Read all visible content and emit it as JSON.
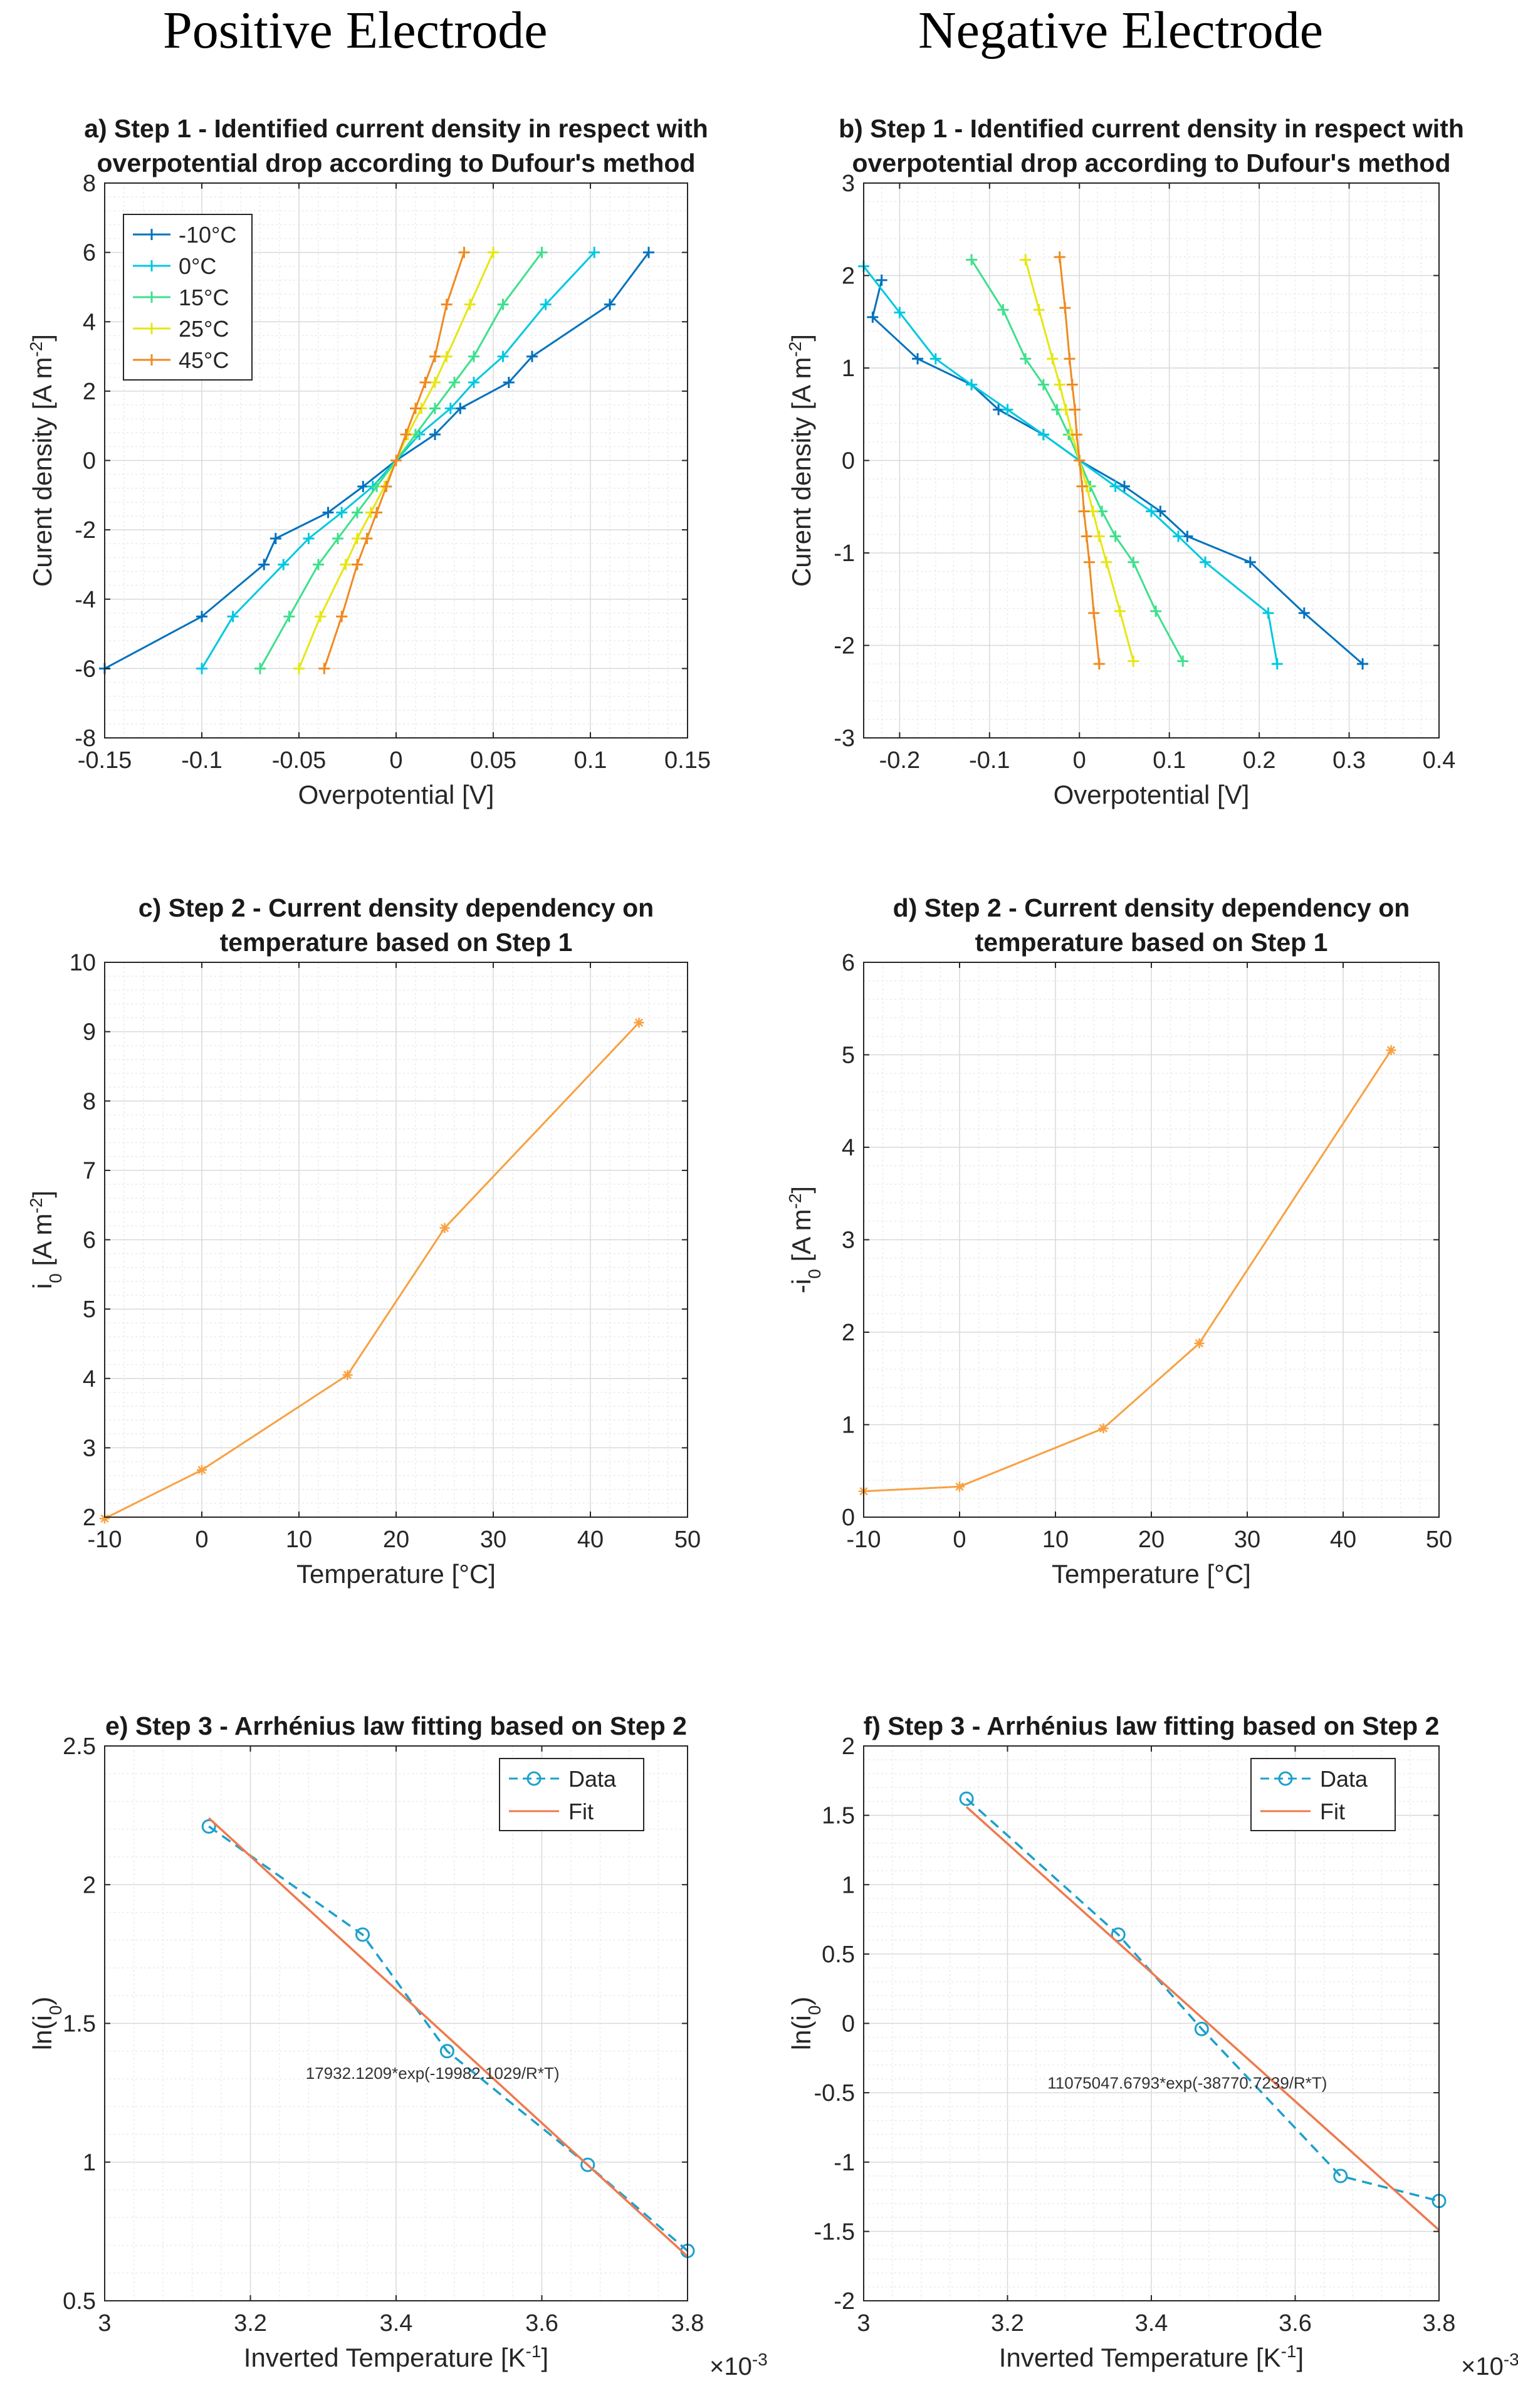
{
  "column_headings": {
    "left": "Positive Electrode",
    "right": "Negative Electrode"
  },
  "colors": {
    "m10": "#0072BD",
    "c0": "#00C8E0",
    "c15": "#3EE08C",
    "c25": "#E6E615",
    "c45": "#F08A20",
    "orange_line": "#F7A142",
    "data_line": "#1CA0CC",
    "fit_line": "#EE7A4E",
    "grid": "#d9d9d9",
    "axis": "#262626"
  },
  "chart_data": [
    {
      "id": "a",
      "type": "line",
      "title": [
        "a) Step 1 - Identified current density in respect with",
        "overpotential drop according to Dufour's method"
      ],
      "xlabel": "Overpotential [V]",
      "ylabel": "Curent density [A m^-2]",
      "xlim": [
        -0.15,
        0.15
      ],
      "ylim": [
        -8,
        8
      ],
      "xticks": [
        -0.15,
        -0.1,
        -0.05,
        0,
        0.05,
        0.1,
        0.15
      ],
      "xticklabels": [
        "-0.15",
        "-0.1",
        "-0.05",
        "0",
        "0.05",
        "0.1",
        "0.15"
      ],
      "yticks": [
        -8,
        -6,
        -4,
        -2,
        0,
        2,
        4,
        6,
        8
      ],
      "yticklabels": [
        "-8",
        "-6",
        "-4",
        "-2",
        "0",
        "2",
        "4",
        "6",
        "8"
      ],
      "marker": "plus",
      "legend_position": "top-left",
      "series": [
        {
          "name": "-10°C",
          "color": "m10",
          "x": [
            -0.15,
            -0.1,
            -0.068,
            -0.062,
            -0.035,
            -0.017,
            0,
            0.02,
            0.033,
            0.058,
            0.07,
            0.11,
            0.13
          ],
          "y": [
            -6,
            -4.5,
            -3,
            -2.25,
            -1.5,
            -0.75,
            0,
            0.75,
            1.5,
            2.25,
            3,
            4.5,
            6
          ]
        },
        {
          "name": "0°C",
          "color": "c0",
          "x": [
            -0.1,
            -0.084,
            -0.058,
            -0.045,
            -0.028,
            -0.012,
            0,
            0.012,
            0.028,
            0.04,
            0.055,
            0.077,
            0.102
          ],
          "y": [
            -6,
            -4.5,
            -3,
            -2.25,
            -1.5,
            -0.75,
            0,
            0.75,
            1.5,
            2.25,
            3,
            4.5,
            6
          ]
        },
        {
          "name": "15°C",
          "color": "c15",
          "x": [
            -0.07,
            -0.055,
            -0.04,
            -0.03,
            -0.02,
            -0.01,
            0,
            0.01,
            0.02,
            0.03,
            0.04,
            0.055,
            0.075
          ],
          "y": [
            -6,
            -4.5,
            -3,
            -2.25,
            -1.5,
            -0.75,
            0,
            0.75,
            1.5,
            2.25,
            3,
            4.5,
            6
          ]
        },
        {
          "name": "25°C",
          "color": "c25",
          "x": [
            -0.05,
            -0.039,
            -0.026,
            -0.02,
            -0.013,
            -0.006,
            0,
            0.006,
            0.013,
            0.02,
            0.026,
            0.038,
            0.05
          ],
          "y": [
            -6,
            -4.5,
            -3,
            -2.25,
            -1.5,
            -0.75,
            0,
            0.75,
            1.5,
            2.25,
            3,
            4.5,
            6
          ]
        },
        {
          "name": "45°C",
          "color": "c45",
          "x": [
            -0.037,
            -0.028,
            -0.02,
            -0.015,
            -0.01,
            -0.005,
            0,
            0.005,
            0.01,
            0.015,
            0.02,
            0.026,
            0.035
          ],
          "y": [
            -6,
            -4.5,
            -3,
            -2.25,
            -1.5,
            -0.75,
            0,
            0.75,
            1.5,
            2.25,
            3,
            4.5,
            6
          ]
        }
      ]
    },
    {
      "id": "b",
      "type": "line",
      "title": [
        "b) Step 1 - Identified current density in respect with",
        "overpotential drop according to Dufour's method"
      ],
      "xlabel": "Overpotential [V]",
      "ylabel": "Curent density [A m^-2]",
      "xlim": [
        -0.24,
        0.4
      ],
      "ylim": [
        -3,
        3
      ],
      "xticks": [
        -0.2,
        -0.1,
        0,
        0.1,
        0.2,
        0.3,
        0.4
      ],
      "xticklabels": [
        "-0.2",
        "-0.1",
        "0",
        "0.1",
        "0.2",
        "0.3",
        "0.4"
      ],
      "yticks": [
        -3,
        -2,
        -1,
        0,
        1,
        2,
        3
      ],
      "yticklabels": [
        "-3",
        "-2",
        "-1",
        "0",
        "1",
        "2",
        "3"
      ],
      "marker": "plus",
      "legend_position": "none",
      "series": [
        {
          "name": "-10°C",
          "color": "m10",
          "x": [
            -0.22,
            -0.23,
            -0.18,
            -0.12,
            -0.09,
            -0.04,
            0,
            0.05,
            0.09,
            0.12,
            0.19,
            0.25,
            0.315
          ],
          "y": [
            1.95,
            1.55,
            1.1,
            0.82,
            0.55,
            0.28,
            0,
            -0.28,
            -0.55,
            -0.82,
            -1.1,
            -1.65,
            -2.2
          ]
        },
        {
          "name": "0°C",
          "color": "c0",
          "x": [
            -0.24,
            -0.2,
            -0.16,
            -0.12,
            -0.08,
            -0.04,
            0,
            0.04,
            0.08,
            0.11,
            0.14,
            0.21,
            0.22
          ],
          "y": [
            2.1,
            1.6,
            1.1,
            0.82,
            0.55,
            0.28,
            0,
            -0.28,
            -0.55,
            -0.82,
            -1.1,
            -1.65,
            -2.2
          ]
        },
        {
          "name": "15°C",
          "color": "c15",
          "x": [
            -0.12,
            -0.085,
            -0.06,
            -0.04,
            -0.025,
            -0.012,
            0,
            0.012,
            0.025,
            0.04,
            0.06,
            0.085,
            0.115
          ],
          "y": [
            2.17,
            1.63,
            1.1,
            0.82,
            0.55,
            0.28,
            0,
            -0.28,
            -0.55,
            -0.82,
            -1.1,
            -1.63,
            -2.17
          ]
        },
        {
          "name": "25°C",
          "color": "c25",
          "x": [
            -0.06,
            -0.045,
            -0.03,
            -0.022,
            -0.015,
            -0.008,
            0,
            0.008,
            0.015,
            0.022,
            0.03,
            0.045,
            0.06
          ],
          "y": [
            2.17,
            1.63,
            1.1,
            0.82,
            0.55,
            0.28,
            0,
            -0.28,
            -0.55,
            -0.82,
            -1.1,
            -1.63,
            -2.17
          ]
        },
        {
          "name": "45°C",
          "color": "c45",
          "x": [
            -0.022,
            -0.016,
            -0.011,
            -0.008,
            -0.005,
            -0.003,
            0,
            0.003,
            0.005,
            0.008,
            0.011,
            0.016,
            0.022
          ],
          "y": [
            2.2,
            1.65,
            1.1,
            0.82,
            0.55,
            0.28,
            0,
            -0.28,
            -0.55,
            -0.82,
            -1.1,
            -1.65,
            -2.2
          ]
        }
      ]
    },
    {
      "id": "c",
      "type": "line",
      "title": [
        "c) Step 2 - Current density dependency on",
        "temperature based on Step 1"
      ],
      "xlabel": "Temperature [°C]",
      "ylabel": "i_0 [A m^-2]",
      "xlim": [
        -10,
        50
      ],
      "ylim": [
        2,
        10
      ],
      "xticks": [
        -10,
        0,
        10,
        20,
        30,
        40,
        50
      ],
      "xticklabels": [
        "-10",
        "0",
        "10",
        "20",
        "30",
        "40",
        "50"
      ],
      "yticks": [
        2,
        3,
        4,
        5,
        6,
        7,
        8,
        9,
        10
      ],
      "yticklabels": [
        "2",
        "3",
        "4",
        "5",
        "6",
        "7",
        "8",
        "9",
        "10"
      ],
      "marker": "star",
      "series": [
        {
          "name": "i0",
          "color": "orange_line",
          "x": [
            -10,
            0,
            15,
            25,
            45
          ],
          "y": [
            1.98,
            2.68,
            4.05,
            6.17,
            9.13
          ]
        }
      ]
    },
    {
      "id": "d",
      "type": "line",
      "title": [
        "d) Step 2 - Current density dependency on",
        "temperature based on Step 1"
      ],
      "xlabel": "Temperature [°C]",
      "ylabel": "-i_0 [A m^-2]",
      "xlim": [
        -10,
        50
      ],
      "ylim": [
        0,
        6
      ],
      "xticks": [
        -10,
        0,
        10,
        20,
        30,
        40,
        50
      ],
      "xticklabels": [
        "-10",
        "0",
        "10",
        "20",
        "30",
        "40",
        "50"
      ],
      "yticks": [
        0,
        1,
        2,
        3,
        4,
        5,
        6
      ],
      "yticklabels": [
        "0",
        "1",
        "2",
        "3",
        "4",
        "5",
        "6"
      ],
      "marker": "star",
      "series": [
        {
          "name": "-i0",
          "color": "orange_line",
          "x": [
            -10,
            0,
            15,
            25,
            45
          ],
          "y": [
            0.28,
            0.33,
            0.96,
            1.88,
            5.05
          ]
        }
      ]
    },
    {
      "id": "e",
      "type": "line",
      "title": [
        "e) Step 3 - Arrhénius law fitting based on Step 2"
      ],
      "xlabel": "Inverted Temperature [K^-1]",
      "ylabel": "ln(i_0)",
      "exponent_label": "×10^-3",
      "xlim": [
        3.0,
        3.8
      ],
      "ylim": [
        0.5,
        2.5
      ],
      "xticks": [
        3.0,
        3.2,
        3.4,
        3.6,
        3.8
      ],
      "xticklabels": [
        "3",
        "3.2",
        "3.4",
        "3.6",
        "3.8"
      ],
      "yticks": [
        0.5,
        1,
        1.5,
        2,
        2.5
      ],
      "yticklabels": [
        "0.5",
        "1",
        "1.5",
        "2",
        "2.5"
      ],
      "annotation": {
        "text": "17932.1209*exp(-19982.1029/R*T)",
        "x": 3.45,
        "y": 1.3
      },
      "legend_position": "top-right",
      "series": [
        {
          "name": "Data",
          "color": "data_line",
          "style": "dashed-circle",
          "x": [
            3.143,
            3.354,
            3.47,
            3.663,
            3.8
          ],
          "y": [
            2.21,
            1.82,
            1.4,
            0.99,
            0.68
          ]
        },
        {
          "name": "Fit",
          "color": "fit_line",
          "style": "solid",
          "x": [
            3.143,
            3.8
          ],
          "y": [
            2.24,
            0.66
          ]
        }
      ]
    },
    {
      "id": "f",
      "type": "line",
      "title": [
        "f) Step 3 - Arrhénius law fitting based on Step 2"
      ],
      "xlabel": "Inverted Temperature [K^-1]",
      "ylabel": "ln(i_0)",
      "exponent_label": "×10^-3",
      "xlim": [
        3.0,
        3.8
      ],
      "ylim": [
        -2,
        2
      ],
      "xticks": [
        3.0,
        3.2,
        3.4,
        3.6,
        3.8
      ],
      "xticklabels": [
        "3",
        "3.2",
        "3.4",
        "3.6",
        "3.8"
      ],
      "yticks": [
        -2,
        -1.5,
        -1,
        -0.5,
        0,
        0.5,
        1,
        1.5,
        2
      ],
      "yticklabels": [
        "-2",
        "-1.5",
        "-1",
        "-0.5",
        "0",
        "0.5",
        "1",
        "1.5",
        "2"
      ],
      "annotation": {
        "text": "11075047.6793*exp(-38770.7239/R*T)",
        "x": 3.45,
        "y": -0.47
      },
      "legend_position": "top-right",
      "series": [
        {
          "name": "Data",
          "color": "data_line",
          "style": "dashed-circle",
          "x": [
            3.143,
            3.354,
            3.47,
            3.663,
            3.8
          ],
          "y": [
            1.62,
            0.64,
            -0.04,
            -1.1,
            -1.28
          ]
        },
        {
          "name": "Fit",
          "color": "fit_line",
          "style": "solid",
          "x": [
            3.143,
            3.8
          ],
          "y": [
            1.56,
            -1.49
          ]
        }
      ]
    }
  ]
}
